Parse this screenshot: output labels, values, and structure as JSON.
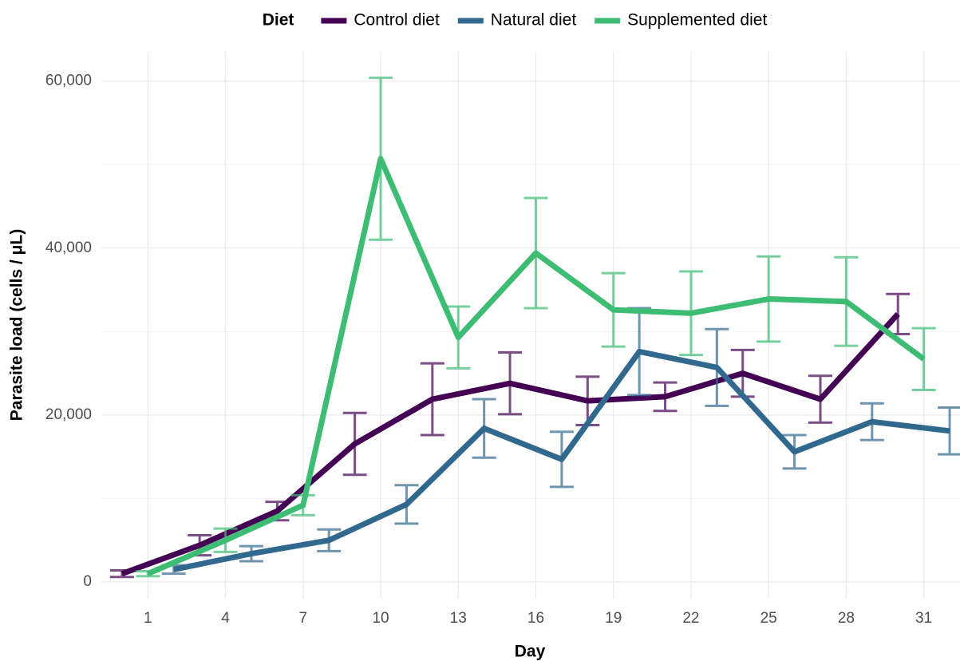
{
  "chart_data": {
    "type": "line",
    "legend_title": "Diet",
    "x_label": "Day",
    "y_label": "Parasite load (cells / μL)",
    "xlim": [
      -0.8,
      32.4
    ],
    "ylim": [
      -2000,
      63500
    ],
    "xticks": [
      1,
      4,
      7,
      10,
      13,
      16,
      19,
      22,
      25,
      28,
      31
    ],
    "yticks": [
      0,
      {
        "value": 20000,
        "label": "20,000"
      },
      {
        "value": 40000,
        "label": "40,000"
      },
      {
        "value": 60000,
        "label": "60,000"
      }
    ],
    "grid": true,
    "legend_position": "top",
    "series": [
      {
        "name": "Control diet",
        "color": "#440154",
        "x": [
          0,
          3,
          6,
          9,
          12,
          15,
          18,
          21,
          24,
          27,
          30
        ],
        "values": [
          1000,
          4400,
          8500,
          16550,
          21900,
          23800,
          21700,
          22200,
          25000,
          21900,
          32100
        ],
        "errors": [
          400,
          1200,
          1100,
          3700,
          4300,
          3700,
          2900,
          1700,
          2800,
          2800,
          2400
        ]
      },
      {
        "name": "Natural diet",
        "color": "#31688e",
        "x": [
          2,
          5,
          8,
          11,
          14,
          17,
          20,
          23,
          26,
          29,
          32
        ],
        "values": [
          1500,
          3400,
          5000,
          9300,
          18400,
          14700,
          27600,
          25700,
          15600,
          19200,
          18100
        ],
        "errors": [
          500,
          900,
          1300,
          2300,
          3500,
          3300,
          5200,
          4600,
          2000,
          2200,
          2800
        ]
      },
      {
        "name": "Supplemented diet",
        "color": "#3dbc74",
        "x": [
          1,
          4,
          7,
          10,
          13,
          16,
          19,
          22,
          25,
          28,
          31
        ],
        "values": [
          1000,
          5000,
          9200,
          50700,
          29300,
          39400,
          32600,
          32200,
          33900,
          33600,
          26700
        ],
        "errors": [
          300,
          1400,
          1200,
          9700,
          3700,
          6600,
          4400,
          5000,
          5100,
          5300,
          3700
        ]
      }
    ]
  }
}
